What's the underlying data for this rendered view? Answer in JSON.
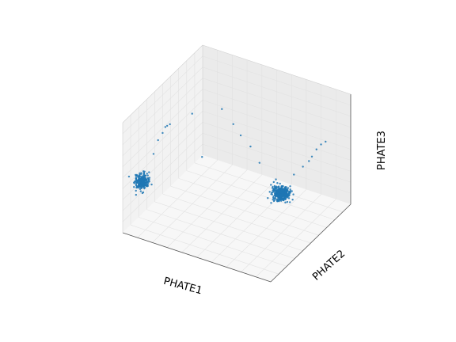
{
  "chart_data": {
    "type": "scatter",
    "projection": "3d",
    "xlabel": "PHATE1",
    "ylabel": "PHATE2",
    "zlabel": "PHATE3",
    "xlim": [
      0,
      1
    ],
    "ylim": [
      0,
      1
    ],
    "zlim": [
      0,
      1
    ],
    "ticks": "hidden",
    "grid": true,
    "legend": "none",
    "point_color": "#1f77b4",
    "clusters": [
      {
        "name": "",
        "center": [
          0.05,
          0.15,
          0.38
        ],
        "spread": [
          0.04,
          0.05,
          0.06
        ],
        "count": 240
      },
      {
        "name": "",
        "center": [
          0.72,
          0.65,
          0.22
        ],
        "spread": [
          0.05,
          0.05,
          0.05
        ],
        "count": 420
      }
    ],
    "points": [
      [
        0.1,
        0.2,
        0.62
      ],
      [
        0.12,
        0.22,
        0.74
      ],
      [
        0.14,
        0.24,
        0.8
      ],
      [
        0.16,
        0.26,
        0.86
      ],
      [
        0.18,
        0.2,
        0.9
      ],
      [
        0.2,
        0.22,
        0.92
      ],
      [
        0.28,
        0.35,
        0.96
      ],
      [
        0.4,
        0.5,
        0.95
      ],
      [
        0.45,
        0.55,
        0.8
      ],
      [
        0.5,
        0.55,
        0.72
      ],
      [
        0.55,
        0.58,
        0.62
      ],
      [
        0.6,
        0.6,
        0.48
      ],
      [
        0.32,
        0.4,
        0.55
      ],
      [
        0.9,
        0.7,
        0.6
      ],
      [
        0.92,
        0.72,
        0.66
      ],
      [
        0.94,
        0.74,
        0.7
      ],
      [
        0.96,
        0.76,
        0.72
      ],
      [
        0.88,
        0.7,
        0.55
      ],
      [
        0.85,
        0.68,
        0.5
      ],
      [
        0.8,
        0.66,
        0.42
      ],
      [
        0.7,
        0.62,
        0.36
      ],
      [
        0.68,
        0.63,
        0.32
      ]
    ]
  }
}
